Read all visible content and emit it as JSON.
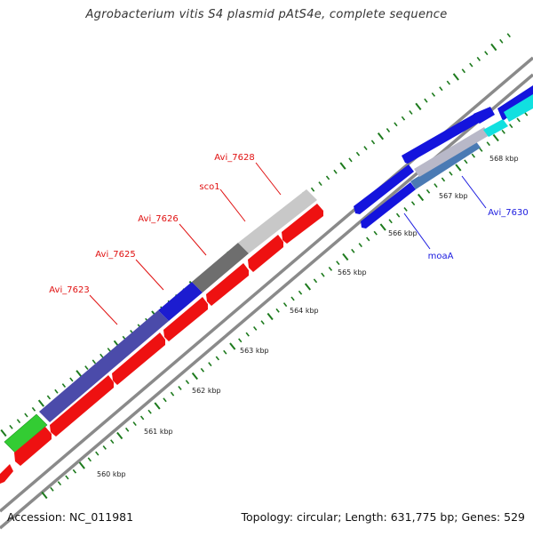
{
  "header": {
    "title": "Agrobacterium vitis S4 plasmid pAtS4e, complete sequence"
  },
  "footer": {
    "accession": "Accession: NC_011981",
    "summary": "Topology: circular; Length: 631,775 bp; Genes: 529"
  },
  "map": {
    "kbp_ticks": [
      {
        "label": "560 kbp",
        "kbp": 560
      },
      {
        "label": "561 kbp",
        "kbp": 561
      },
      {
        "label": "562 kbp",
        "kbp": 562
      },
      {
        "label": "563 kbp",
        "kbp": 563
      },
      {
        "label": "564 kbp",
        "kbp": 564
      },
      {
        "label": "565 kbp",
        "kbp": 565
      },
      {
        "label": "566 kbp",
        "kbp": 566
      },
      {
        "label": "567 kbp",
        "kbp": 567
      },
      {
        "label": "568 kbp",
        "kbp": 568
      }
    ],
    "gene_labels": [
      {
        "label": "Avi_7623",
        "color": "#e01010"
      },
      {
        "label": "Avi_7625",
        "color": "#e01010"
      },
      {
        "label": "Avi_7626",
        "color": "#e01010"
      },
      {
        "label": "sco1",
        "color": "#e01010"
      },
      {
        "label": "Avi_7628",
        "color": "#e01010"
      },
      {
        "label": "moaA",
        "color": "#1a1adf"
      },
      {
        "label": "Avi_7630",
        "color": "#1a1adf"
      }
    ],
    "colors": {
      "forward_cds": "#1414dd",
      "reverse_cds": "#ee1111",
      "other_feature": "#33cc33",
      "cyan_feature": "#11e0e0",
      "backbone": "#8a8a8a",
      "tick": "#1d7a1d",
      "shading_purple": "#4b4baa",
      "shading_gray_dark": "#6e6e6e",
      "shading_gray_light": "#c8c8c8"
    }
  }
}
